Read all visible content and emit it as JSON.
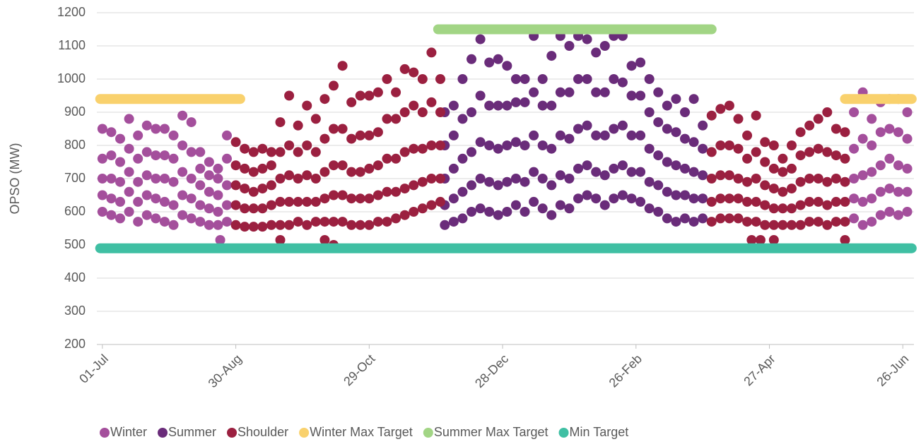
{
  "chart_data": {
    "type": "scatter",
    "y_label": "OPSO (MW)",
    "xlim": [
      -2.5,
      365
    ],
    "xticks": [
      {
        "value": 0,
        "label": "01-Jul"
      },
      {
        "value": 60,
        "label": "30-Aug"
      },
      {
        "value": 120,
        "label": "29-Oct"
      },
      {
        "value": 180,
        "label": "28-Dec"
      },
      {
        "value": 240,
        "label": "26-Feb"
      },
      {
        "value": 300,
        "label": "27-Apr"
      },
      {
        "value": 360,
        "label": "26-Jun"
      }
    ],
    "ylim": [
      200,
      1200
    ],
    "yticks": [
      200,
      300,
      400,
      500,
      600,
      700,
      800,
      900,
      1000,
      1100,
      1200
    ],
    "grid": true,
    "legend": "bottom",
    "series": [
      {
        "name": "Winter",
        "color": "#a44f9c",
        "type": "scatter",
        "x": [
          0,
          4,
          8,
          12,
          16,
          20,
          24,
          28,
          32,
          36,
          40,
          44,
          48,
          52,
          56,
          338,
          342,
          346,
          350,
          354,
          358,
          362,
          53
        ],
        "values": [
          [
            600,
            650,
            700,
            760,
            850
          ],
          [
            590,
            640,
            700,
            770,
            840
          ],
          [
            580,
            630,
            690,
            750,
            820
          ],
          [
            600,
            660,
            720,
            790,
            880
          ],
          [
            570,
            630,
            690,
            760,
            830
          ],
          [
            590,
            650,
            710,
            780,
            860
          ],
          [
            580,
            640,
            700,
            770,
            850
          ],
          [
            570,
            630,
            700,
            770,
            850
          ],
          [
            560,
            620,
            690,
            760,
            830
          ],
          [
            590,
            650,
            720,
            800,
            890
          ],
          [
            580,
            640,
            700,
            780,
            870
          ],
          [
            570,
            620,
            680,
            730,
            780
          ],
          [
            560,
            610,
            660,
            710,
            750
          ],
          [
            560,
            600,
            650,
            700,
            730
          ],
          [
            570,
            620,
            680,
            760,
            830
          ],
          [
            580,
            640,
            700,
            790,
            900
          ],
          [
            560,
            630,
            710,
            820,
            960
          ],
          [
            570,
            640,
            720,
            800,
            880
          ],
          [
            590,
            660,
            740,
            840,
            930
          ],
          [
            600,
            670,
            760,
            850,
            940
          ],
          [
            590,
            660,
            740,
            840,
            940
          ],
          [
            600,
            660,
            730,
            820,
            900
          ],
          [
            515
          ]
        ]
      },
      {
        "name": "Summer",
        "color": "#6a2c7a",
        "type": "scatter",
        "x": [
          154,
          158,
          162,
          166,
          170,
          174,
          178,
          182,
          186,
          190,
          194,
          198,
          202,
          206,
          210,
          214,
          218,
          222,
          226,
          230,
          234,
          238,
          242,
          246,
          250,
          254,
          258,
          262,
          266,
          270
        ],
        "values": [
          [
            560,
            620,
            700,
            800,
            900
          ],
          [
            570,
            640,
            730,
            830,
            920
          ],
          [
            580,
            660,
            760,
            880,
            1000
          ],
          [
            600,
            680,
            780,
            900,
            1060
          ],
          [
            610,
            700,
            810,
            950,
            1120
          ],
          [
            600,
            690,
            800,
            920,
            1050
          ],
          [
            590,
            680,
            790,
            920,
            1060
          ],
          [
            600,
            690,
            800,
            920,
            1040
          ],
          [
            620,
            700,
            810,
            930,
            1000
          ],
          [
            600,
            690,
            800,
            930,
            1000
          ],
          [
            630,
            720,
            830,
            960,
            1130
          ],
          [
            610,
            700,
            800,
            920,
            1000
          ],
          [
            590,
            680,
            790,
            920,
            1070
          ],
          [
            620,
            710,
            830,
            960,
            1130
          ],
          [
            610,
            700,
            820,
            960,
            1100
          ],
          [
            640,
            730,
            850,
            1000,
            1130
          ],
          [
            650,
            740,
            860,
            1000,
            1120
          ],
          [
            640,
            720,
            830,
            960,
            1080
          ],
          [
            620,
            710,
            830,
            960,
            1100
          ],
          [
            640,
            730,
            850,
            1000,
            1130
          ],
          [
            650,
            740,
            860,
            990,
            1130
          ],
          [
            640,
            720,
            830,
            950,
            1040
          ],
          [
            630,
            720,
            830,
            950,
            1050
          ],
          [
            610,
            690,
            790,
            900,
            1000
          ],
          [
            600,
            680,
            770,
            870,
            960
          ],
          [
            580,
            660,
            750,
            850,
            920
          ],
          [
            570,
            650,
            740,
            840,
            940
          ],
          [
            580,
            650,
            730,
            820,
            900
          ],
          [
            570,
            640,
            720,
            810,
            940
          ],
          [
            580,
            640,
            710,
            790,
            860
          ]
        ]
      },
      {
        "name": "Shoulder",
        "color": "#9b2040",
        "type": "scatter",
        "x": [
          60,
          64,
          68,
          72,
          76,
          80,
          84,
          88,
          92,
          96,
          100,
          104,
          108,
          112,
          116,
          120,
          124,
          128,
          132,
          136,
          140,
          144,
          148,
          152,
          274,
          278,
          282,
          286,
          290,
          294,
          298,
          302,
          306,
          310,
          314,
          318,
          322,
          326,
          330,
          334,
          80,
          100,
          104,
          292,
          296,
          302,
          334
        ],
        "values": [
          [
            560,
            620,
            680,
            740,
            810
          ],
          [
            555,
            610,
            670,
            730,
            790
          ],
          [
            555,
            610,
            660,
            720,
            780
          ],
          [
            555,
            610,
            670,
            730,
            790
          ],
          [
            560,
            620,
            680,
            740,
            780
          ],
          [
            560,
            630,
            700,
            780,
            870
          ],
          [
            560,
            630,
            710,
            800,
            950
          ],
          [
            570,
            630,
            700,
            780,
            860
          ],
          [
            560,
            630,
            710,
            800,
            920
          ],
          [
            570,
            630,
            700,
            780,
            880
          ],
          [
            570,
            640,
            720,
            820,
            940
          ],
          [
            570,
            650,
            740,
            850,
            980
          ],
          [
            570,
            650,
            740,
            850,
            1040
          ],
          [
            560,
            640,
            720,
            820,
            930
          ],
          [
            560,
            640,
            720,
            830,
            950
          ],
          [
            560,
            640,
            730,
            830,
            950
          ],
          [
            570,
            650,
            740,
            840,
            960
          ],
          [
            570,
            660,
            760,
            880,
            1000
          ],
          [
            580,
            660,
            760,
            880,
            960
          ],
          [
            590,
            670,
            780,
            900,
            1030
          ],
          [
            600,
            680,
            790,
            920,
            1020
          ],
          [
            610,
            690,
            790,
            900,
            1000
          ],
          [
            620,
            700,
            800,
            930,
            1080
          ],
          [
            630,
            700,
            800,
            900,
            1000
          ],
          [
            570,
            630,
            700,
            780,
            890
          ],
          [
            580,
            640,
            710,
            800,
            910
          ],
          [
            580,
            640,
            710,
            800,
            920
          ],
          [
            580,
            640,
            700,
            790,
            880
          ],
          [
            570,
            630,
            690,
            760,
            830
          ],
          [
            570,
            630,
            700,
            780,
            890
          ],
          [
            560,
            620,
            680,
            750,
            810
          ],
          [
            560,
            610,
            670,
            730,
            800
          ],
          [
            560,
            610,
            660,
            720,
            760
          ],
          [
            560,
            610,
            670,
            730,
            800
          ],
          [
            560,
            620,
            690,
            770,
            840
          ],
          [
            570,
            630,
            700,
            780,
            860
          ],
          [
            570,
            630,
            700,
            790,
            880
          ],
          [
            560,
            620,
            690,
            780,
            900
          ],
          [
            570,
            630,
            700,
            770,
            850
          ],
          [
            570,
            630,
            690,
            760,
            840
          ],
          [
            515
          ],
          [
            515
          ],
          [
            500
          ],
          [
            515
          ],
          [
            515
          ],
          [
            515
          ],
          [
            515
          ]
        ]
      },
      {
        "name": "Winter Max Target",
        "color": "#f9d16d",
        "type": "line",
        "x": [
          -1,
          62,
          62,
          334,
          364
        ],
        "values": [
          940,
          940,
          null,
          940,
          940
        ]
      },
      {
        "name": "Summer Max Target",
        "color": "#a2d585",
        "type": "line",
        "x": [
          151,
          274
        ],
        "values": [
          1150,
          1150
        ]
      },
      {
        "name": "Min Target",
        "color": "#3fbfa3",
        "type": "line",
        "x": [
          -1,
          364
        ],
        "values": [
          490,
          490
        ]
      }
    ]
  }
}
